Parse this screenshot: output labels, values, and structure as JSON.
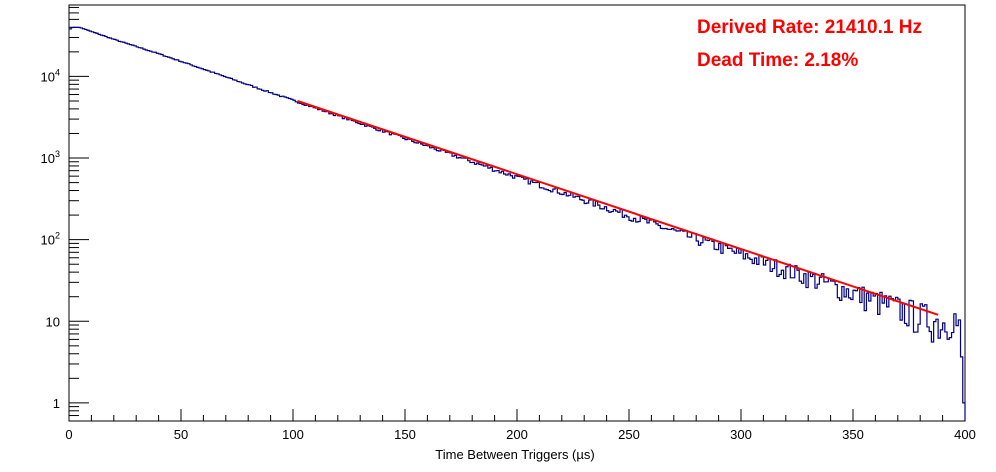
{
  "chart_data": {
    "type": "line",
    "xlabel": "Time Between Triggers (µs)",
    "ylabel": "",
    "xlim": [
      0,
      400
    ],
    "ylim": [
      0.6,
      75000
    ],
    "yscale": "log",
    "grid": false,
    "legend": "none",
    "x_ticks": [
      {
        "value": 0,
        "label": "0"
      },
      {
        "value": 50,
        "label": "50"
      },
      {
        "value": 100,
        "label": "100"
      },
      {
        "value": 150,
        "label": "150"
      },
      {
        "value": 200,
        "label": "200"
      },
      {
        "value": 250,
        "label": "250"
      },
      {
        "value": 300,
        "label": "300"
      },
      {
        "value": 350,
        "label": "350"
      },
      {
        "value": 400,
        "label": "400"
      }
    ],
    "y_ticks": [
      {
        "value": 1,
        "base": "1",
        "exp": ""
      },
      {
        "value": 10,
        "base": "10",
        "exp": ""
      },
      {
        "value": 100,
        "base": "10",
        "exp": "2"
      },
      {
        "value": 1000,
        "base": "10",
        "exp": "3"
      },
      {
        "value": 10000,
        "base": "10",
        "exp": "4"
      }
    ],
    "series": [
      {
        "kind": "histogram",
        "color": "#000080",
        "x": [
          0,
          2,
          4,
          6,
          8,
          10,
          20,
          40,
          60,
          80,
          100,
          120,
          140,
          160,
          180,
          200,
          220,
          240,
          260,
          280,
          300,
          320,
          340,
          360,
          380,
          390,
          395,
          398,
          399.5
        ],
        "y": [
          38000,
          40000,
          40000,
          39000,
          37000,
          35500,
          28500,
          19000,
          12300,
          7900,
          5100,
          3300,
          2150,
          1400,
          900,
          580,
          380,
          245,
          158,
          102,
          66,
          43,
          28,
          18,
          11.7,
          9.5,
          12,
          7,
          1
        ]
      },
      {
        "kind": "fit",
        "color": "#ff0000",
        "x": [
          102,
          388
        ],
        "y": [
          5000,
          12.0
        ]
      }
    ],
    "annotations": [
      {
        "text": "Derived Rate: 21410.1 Hz",
        "color": "#ff0000"
      },
      {
        "text": "Dead Time: 2.18%",
        "color": "#ff0000"
      }
    ]
  }
}
